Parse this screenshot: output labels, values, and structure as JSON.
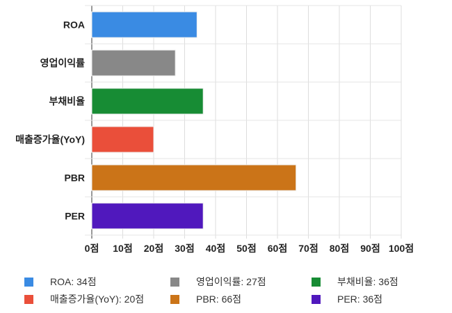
{
  "chart_data": {
    "type": "bar",
    "orientation": "horizontal",
    "categories": [
      "ROA",
      "영업이익률",
      "부채비율",
      "매출증가율(YoY)",
      "PBR",
      "PER"
    ],
    "values": [
      34,
      27,
      36,
      20,
      66,
      36
    ],
    "colors": [
      "#3a8be3",
      "#888888",
      "#178c34",
      "#ea4f3a",
      "#cb7418",
      "#5018bd"
    ],
    "xlim": [
      0,
      100
    ],
    "xticks": [
      0,
      10,
      20,
      30,
      40,
      50,
      60,
      70,
      80,
      90,
      100
    ],
    "xtick_labels": [
      "0점",
      "10점",
      "20점",
      "30점",
      "40점",
      "50점",
      "60점",
      "70점",
      "80점",
      "90점",
      "100점"
    ],
    "grid": true,
    "legend_position": "bottom",
    "legend": [
      "ROA: 34점",
      "영업이익률: 27점",
      "부채비율: 36점",
      "매출증가율(YoY): 20점",
      "PBR: 66점",
      "PER: 36점"
    ]
  }
}
